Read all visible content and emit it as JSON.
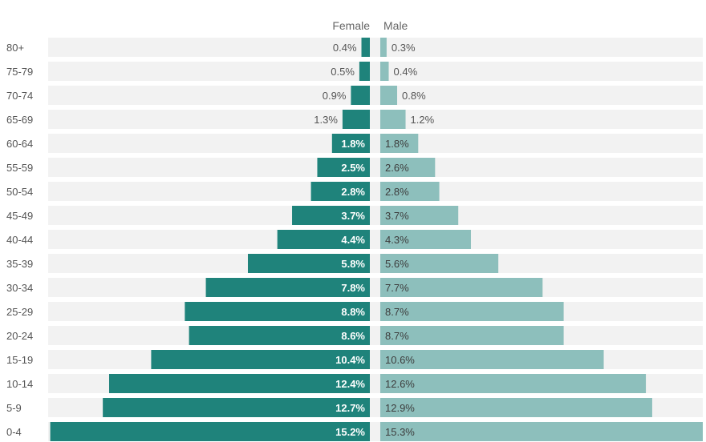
{
  "chart_data": {
    "type": "bar",
    "orientation": "horizontal",
    "layout": "population-pyramid",
    "title": "",
    "xlabel": "",
    "ylabel": "",
    "unit": "%",
    "grid": false,
    "legend_position": "top-center",
    "categories": [
      "80+",
      "75-79",
      "70-74",
      "65-69",
      "60-64",
      "55-59",
      "50-54",
      "45-49",
      "40-44",
      "35-39",
      "30-34",
      "25-29",
      "20-24",
      "15-19",
      "10-14",
      "5-9",
      "0-4"
    ],
    "series": [
      {
        "name": "Female",
        "color": "#1f837b",
        "values": [
          0.4,
          0.5,
          0.9,
          1.3,
          1.8,
          2.5,
          2.8,
          3.7,
          4.4,
          5.8,
          7.8,
          8.8,
          8.6,
          10.4,
          12.4,
          12.7,
          15.2
        ],
        "labels": [
          "0.4%",
          "0.5%",
          "0.9%",
          "1.3%",
          "1.8%",
          "2.5%",
          "2.8%",
          "3.7%",
          "4.4%",
          "5.8%",
          "7.8%",
          "8.8%",
          "8.6%",
          "10.4%",
          "12.4%",
          "12.7%",
          "15.2%"
        ]
      },
      {
        "name": "Male",
        "color": "#8dbfbc",
        "values": [
          0.3,
          0.4,
          0.8,
          1.2,
          1.8,
          2.6,
          2.8,
          3.7,
          4.3,
          5.6,
          7.7,
          8.7,
          8.7,
          10.6,
          12.6,
          12.9,
          15.3
        ],
        "labels": [
          "0.3%",
          "0.4%",
          "0.8%",
          "1.2%",
          "1.8%",
          "2.6%",
          "2.8%",
          "3.7%",
          "4.3%",
          "5.6%",
          "7.7%",
          "8.7%",
          "8.7%",
          "10.6%",
          "12.6%",
          "12.9%",
          "15.3%"
        ]
      }
    ],
    "xlim": [
      0,
      15.3
    ],
    "colors": {
      "row_background": "#f2f2f2",
      "tick_text": "#555555",
      "legend_text": "#666666",
      "label_outside": "#555555",
      "label_inside_female": "#ffffff",
      "label_inside_male": "#3d3d3d"
    }
  }
}
